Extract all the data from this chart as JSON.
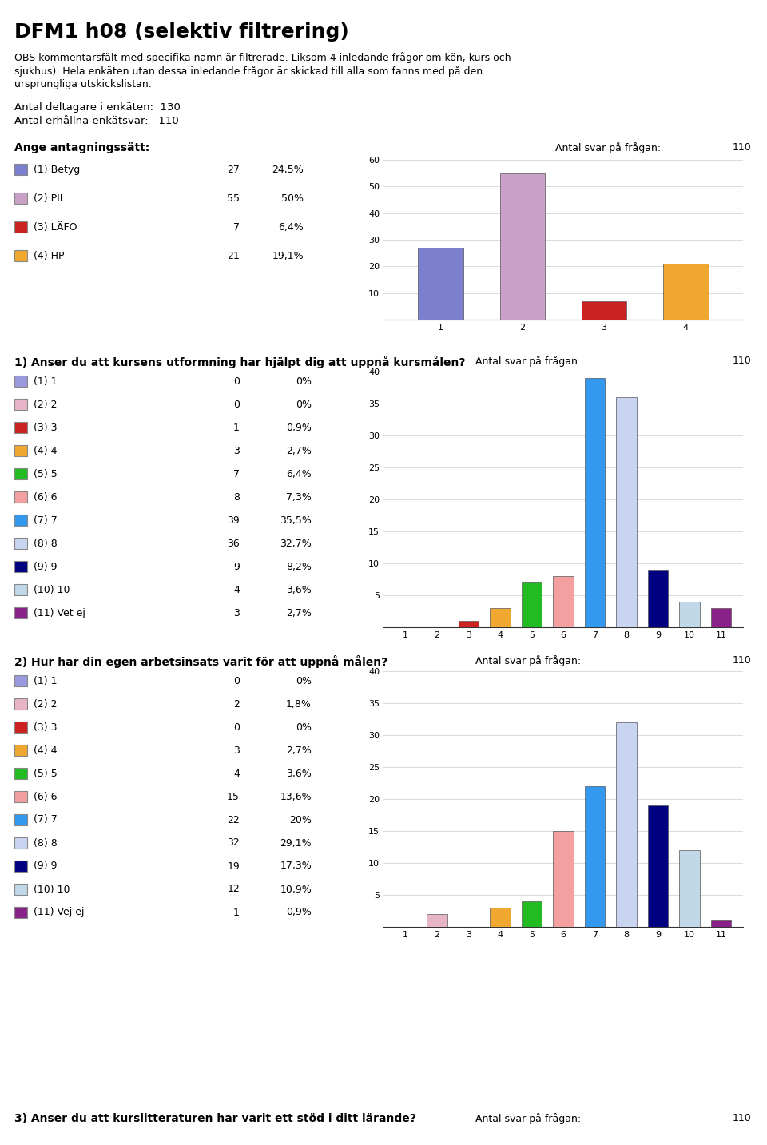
{
  "title": "DFM1 h08 (selektiv filtrering)",
  "obs_line1": "OBS kommentarsfält med specifika namn är filtrerade. Liksom 4 inledande frågor om kön, kurs och",
  "obs_line2": "sjukhus). Hela enkäten utan dessa inledande frågor är skickad till alla som fanns med på den",
  "obs_line3": "ursprungliga utskickslistan.",
  "antal_deltagare": 130,
  "antal_enkatsvar": 110,
  "section0_title": "Ange antagningssätt:",
  "section0_antal": 110,
  "section0_categories": [
    "(1) Betyg",
    "(2) PIL",
    "(3) LÄFO",
    "(4) HP"
  ],
  "section0_values": [
    27,
    55,
    7,
    21
  ],
  "section0_pcts": [
    "24,5%",
    "50%",
    "6,4%",
    "19,1%"
  ],
  "section0_colors": [
    "#7b7fcd",
    "#c9a0c8",
    "#cc2222",
    "#f0a830"
  ],
  "section0_ylim": [
    0,
    60
  ],
  "section0_yticks": [
    10,
    20,
    30,
    40,
    50,
    60
  ],
  "section1_title": "1) Anser du att kursens utformning har hjälpt dig att uppnå kursmålen?",
  "section1_antal": 110,
  "section1_categories": [
    "(1) 1",
    "(2) 2",
    "(3) 3",
    "(4) 4",
    "(5) 5",
    "(6) 6",
    "(7) 7",
    "(8) 8",
    "(9) 9",
    "(10) 10",
    "(11) Vet ej"
  ],
  "section1_values": [
    0,
    0,
    1,
    3,
    7,
    8,
    39,
    36,
    9,
    4,
    3
  ],
  "section1_pcts": [
    "0%",
    "0%",
    "0,9%",
    "2,7%",
    "6,4%",
    "7,3%",
    "35,5%",
    "32,7%",
    "8,2%",
    "3,6%",
    "2,7%"
  ],
  "section1_colors": [
    "#9999dd",
    "#e8b4c8",
    "#cc2222",
    "#f0a830",
    "#22bb22",
    "#f4a0a0",
    "#3399ee",
    "#c8d4f0",
    "#000080",
    "#c0d8e8",
    "#882288"
  ],
  "section1_ylim": [
    0,
    40
  ],
  "section1_yticks": [
    5,
    10,
    15,
    20,
    25,
    30,
    35,
    40
  ],
  "section2_title": "2) Hur har din egen arbetsinsats varit för att uppnå målen?",
  "section2_antal": 110,
  "section2_categories": [
    "(1) 1",
    "(2) 2",
    "(3) 3",
    "(4) 4",
    "(5) 5",
    "(6) 6",
    "(7) 7",
    "(8) 8",
    "(9) 9",
    "(10) 10",
    "(11) Vej ej"
  ],
  "section2_values": [
    0,
    2,
    0,
    3,
    4,
    15,
    22,
    32,
    19,
    12,
    1
  ],
  "section2_pcts": [
    "0%",
    "1,8%",
    "0%",
    "2,7%",
    "3,6%",
    "13,6%",
    "20%",
    "29,1%",
    "17,3%",
    "10,9%",
    "0,9%"
  ],
  "section2_colors": [
    "#9999dd",
    "#e8b4c8",
    "#cc2222",
    "#f0a830",
    "#22bb22",
    "#f4a0a0",
    "#3399ee",
    "#c8d4f0",
    "#000080",
    "#c0d8e8",
    "#882288"
  ],
  "section2_ylim": [
    0,
    40
  ],
  "section2_yticks": [
    5,
    10,
    15,
    20,
    25,
    30,
    35,
    40
  ],
  "section3_title": "3) Anser du att kurslitteraturen har varit ett stöd i ditt lärande?",
  "section3_antal": 110,
  "bg_color": "#ffffff",
  "antal_svar_label": "Antal svar på frågan:"
}
